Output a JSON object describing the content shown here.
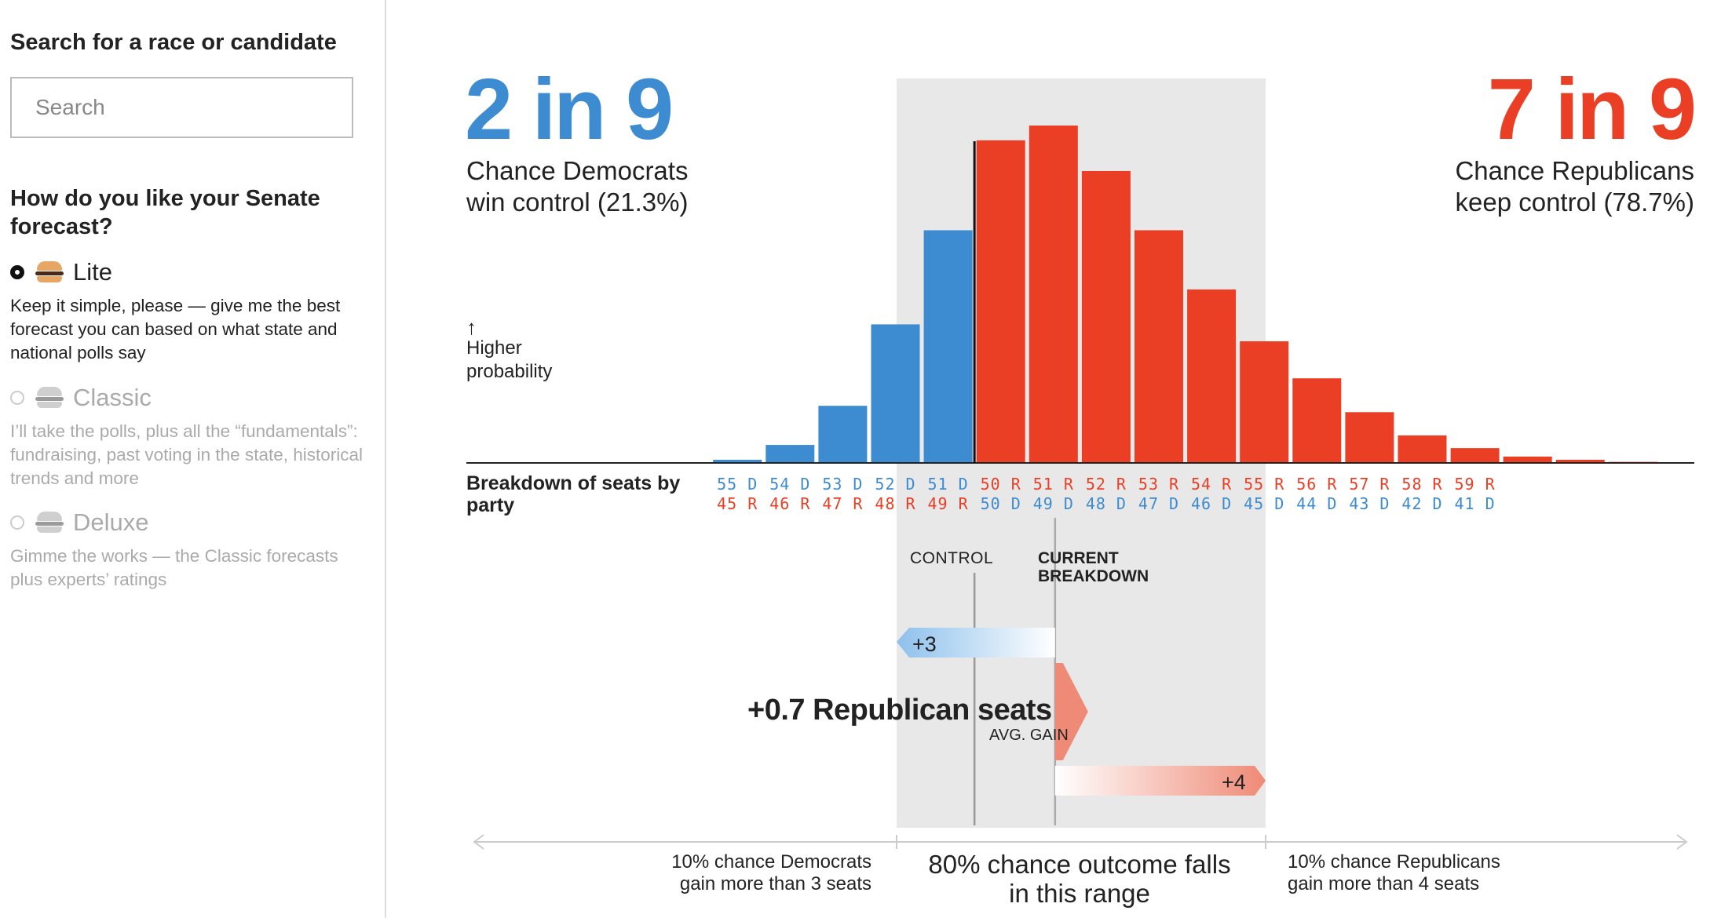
{
  "sidebar": {
    "search_heading": "Search for a race or candidate",
    "search_placeholder": "Search",
    "question": "How do you like your Senate forecast?",
    "options": [
      {
        "label": "Lite",
        "selected": true,
        "desc": "Keep it simple, please — give me the best forecast you can based on what state and national polls say",
        "icon": "burger-lite-icon"
      },
      {
        "label": "Classic",
        "selected": false,
        "desc": "I’ll take the polls, plus all the “fundamentals”: fundraising, past voting in the state, historical trends and more",
        "icon": "burger-classic-icon"
      },
      {
        "label": "Deluxe",
        "selected": false,
        "desc": "Gimme the works — the Classic forecasts plus experts’ ratings",
        "icon": "burger-deluxe-icon"
      }
    ]
  },
  "colors": {
    "dem": "#3d8bd1",
    "rep": "#ea3f25",
    "shade": "#e8e8e8"
  },
  "headline": {
    "dem_big": "2 in 9",
    "dem_text_1": "Chance Democrats",
    "dem_text_2": "win control (21.3%)",
    "rep_big": "7 in 9",
    "rep_text_1": "Chance Republicans",
    "rep_text_2": "keep control (78.7%)"
  },
  "y_note": {
    "arrow": "↑",
    "line1": "Higher",
    "line2": "probability"
  },
  "breakdown_label": "Breakdown of seats by party",
  "markers": {
    "control": "CONTROL",
    "current_1": "CURRENT",
    "current_2": "BREAKDOWN"
  },
  "gain": {
    "dem_range": "+3",
    "avg_text": "+0.7 Republican seats",
    "avg_sub": "AVG. GAIN",
    "rep_range": "+4"
  },
  "range_text": {
    "left_1": "10% chance Democrats",
    "left_2": "gain more than 3 seats",
    "mid_1": "80% chance outcome falls",
    "mid_2": "in this range",
    "right_1": "10% chance Republicans",
    "right_2": "gain more than 4 seats"
  },
  "chart_data": {
    "type": "bar",
    "title": "",
    "xlabel": "Breakdown of seats by party",
    "ylabel": "Higher probability",
    "x": [
      57,
      56,
      55,
      54,
      53,
      52,
      51,
      50,
      51,
      52,
      53,
      54,
      55,
      56,
      57,
      58,
      59,
      60,
      61,
      62,
      63
    ],
    "party": [
      "D",
      "D",
      "D",
      "D",
      "D",
      "D",
      "D",
      "R",
      "R",
      "R",
      "R",
      "R",
      "R",
      "R",
      "R",
      "R",
      "R",
      "R",
      "R",
      "R",
      "R"
    ],
    "values": [
      0.0,
      0.0,
      0.3,
      1.7,
      5.4,
      13.1,
      22.0,
      30.5,
      31.9,
      27.6,
      22.0,
      16.4,
      11.5,
      8.0,
      4.8,
      2.6,
      1.4,
      0.6,
      0.3,
      0.1,
      0.0
    ],
    "tick_labels": [
      {
        "top": "55 D",
        "bottom": "45 R",
        "top_party": "D",
        "bottom_party": "R"
      },
      {
        "top": "54 D",
        "bottom": "46 R",
        "top_party": "D",
        "bottom_party": "R"
      },
      {
        "top": "53 D",
        "bottom": "47 R",
        "top_party": "D",
        "bottom_party": "R"
      },
      {
        "top": "52 D",
        "bottom": "48 R",
        "top_party": "D",
        "bottom_party": "R"
      },
      {
        "top": "51 D",
        "bottom": "49 R",
        "top_party": "D",
        "bottom_party": "R"
      },
      {
        "top": "50 R",
        "bottom": "50 D",
        "top_party": "R",
        "bottom_party": "D"
      },
      {
        "top": "51 R",
        "bottom": "49 D",
        "top_party": "R",
        "bottom_party": "D"
      },
      {
        "top": "52 R",
        "bottom": "48 D",
        "top_party": "R",
        "bottom_party": "D"
      },
      {
        "top": "53 R",
        "bottom": "47 D",
        "top_party": "R",
        "bottom_party": "D"
      },
      {
        "top": "54 R",
        "bottom": "46 D",
        "top_party": "R",
        "bottom_party": "D"
      },
      {
        "top": "55 R",
        "bottom": "45 D",
        "top_party": "R",
        "bottom_party": "D"
      },
      {
        "top": "56 R",
        "bottom": "44 D",
        "top_party": "R",
        "bottom_party": "D"
      },
      {
        "top": "57 R",
        "bottom": "43 D",
        "top_party": "R",
        "bottom_party": "D"
      },
      {
        "top": "58 R",
        "bottom": "42 D",
        "top_party": "R",
        "bottom_party": "D"
      },
      {
        "top": "59 R",
        "bottom": "41 D",
        "top_party": "R",
        "bottom_party": "D"
      }
    ],
    "control_threshold": 50,
    "current_breakdown": "51 R",
    "shaded_range": [
      "52 D",
      "55 R"
    ],
    "grid": false
  }
}
